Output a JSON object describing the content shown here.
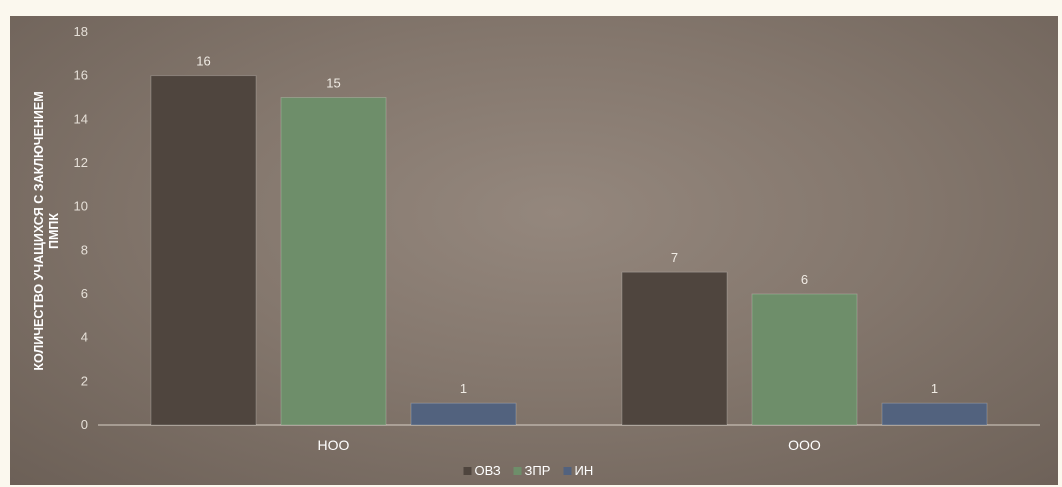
{
  "chart_data": {
    "type": "bar",
    "categories": [
      "НОО",
      "ООО"
    ],
    "series": [
      {
        "name": "ОВЗ",
        "color": "#4f453e",
        "values": [
          16,
          7
        ]
      },
      {
        "name": "ЗПР",
        "color": "#6e8e6a",
        "values": [
          15,
          6
        ]
      },
      {
        "name": "ИН",
        "color": "#52627e",
        "values": [
          1,
          1
        ]
      }
    ],
    "ylabel_lines": [
      "КОЛИЧЕСТВО УЧАЩИХСЯ С ЗАКЛЮЧЕНИЕМ",
      "ПМПК"
    ],
    "ylim": [
      0,
      18
    ],
    "yticks": [
      0,
      2,
      4,
      6,
      8,
      10,
      12,
      14,
      16,
      18
    ],
    "legend_position": "bottom",
    "grid": false,
    "data_labels": true
  }
}
